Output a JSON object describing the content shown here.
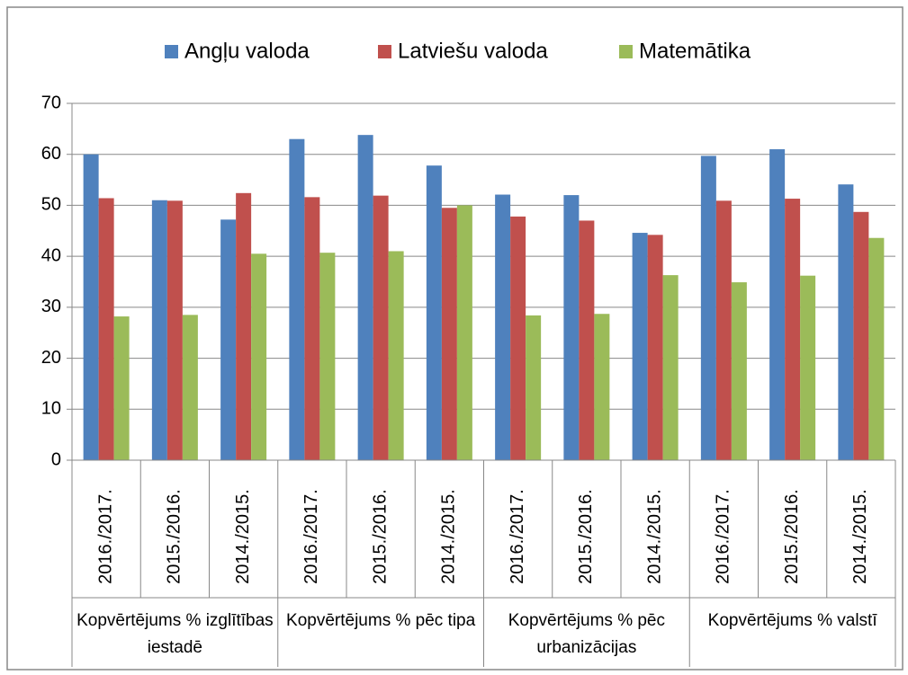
{
  "chart_data": {
    "type": "bar",
    "categories": [
      "2016./2017.",
      "2015./2016.",
      "2014./2015.",
      "2016./2017.",
      "2015./2016.",
      "2014./2015.",
      "2016./2017.",
      "2015./2016.",
      "2014./2015.",
      "2016./2017.",
      "2015./2016.",
      "2014./2015."
    ],
    "category_groups": [
      "Kopvērtējums % izglītības iestadē",
      "Kopvērtējums % pēc tipa",
      "Kopvērtējums % pēc urbanizācijas",
      "Kopvērtējums % valstī"
    ],
    "series": [
      {
        "name": "Angļu valoda",
        "color": "#4f81bd",
        "values": [
          60.0,
          51.0,
          47.2,
          63.0,
          63.8,
          57.8,
          52.1,
          52.0,
          44.6,
          59.7,
          61.0,
          54.1
        ]
      },
      {
        "name": "Latviešu valoda",
        "color": "#c0504d",
        "values": [
          51.4,
          50.9,
          52.4,
          51.6,
          51.9,
          49.5,
          47.8,
          47.0,
          44.2,
          50.9,
          51.3,
          48.7
        ]
      },
      {
        "name": "Matemātika",
        "color": "#9bbb59",
        "values": [
          28.2,
          28.5,
          40.5,
          40.7,
          41.0,
          50.0,
          28.4,
          28.7,
          36.3,
          34.9,
          36.2,
          43.6
        ]
      }
    ],
    "ylim": [
      0,
      70
    ],
    "yticks": [
      0,
      10,
      20,
      30,
      40,
      50,
      60,
      70
    ],
    "grid": true,
    "legend": "top"
  }
}
